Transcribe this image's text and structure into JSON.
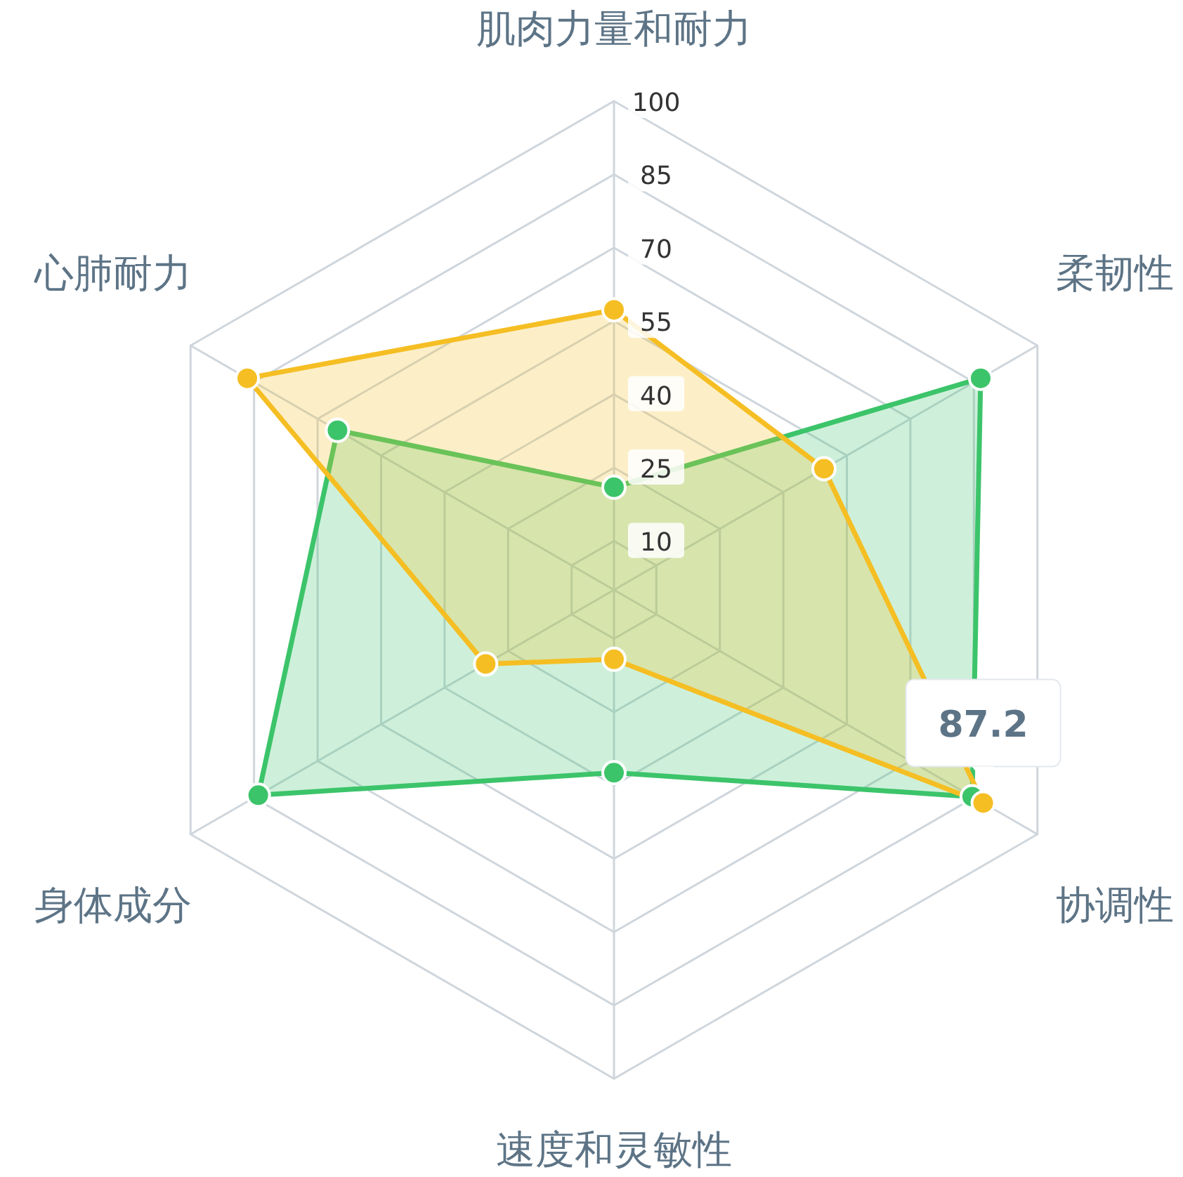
{
  "chart_data": {
    "type": "radar",
    "categories": [
      "肌肉力量和耐力",
      "柔韧性",
      "协调性",
      "速度和灵敏性",
      "身体成分",
      "心肺耐力"
    ],
    "series": [
      {
        "color": "#3cc46a",
        "values": [
          21,
          86.6,
          84.6,
          37.4,
          84,
          65.3
        ]
      },
      {
        "color": "#f5be23",
        "values": [
          57.3,
          49.6,
          87.2,
          14.2,
          30.3,
          86.6
        ],
        "value_labels": [
          null,
          null,
          "87.2",
          null,
          null,
          null
        ]
      }
    ],
    "ylim": [
      0,
      100
    ],
    "yticks": [
      10,
      25,
      40,
      55,
      70,
      85,
      100
    ],
    "grid": true,
    "marker": "circle"
  }
}
